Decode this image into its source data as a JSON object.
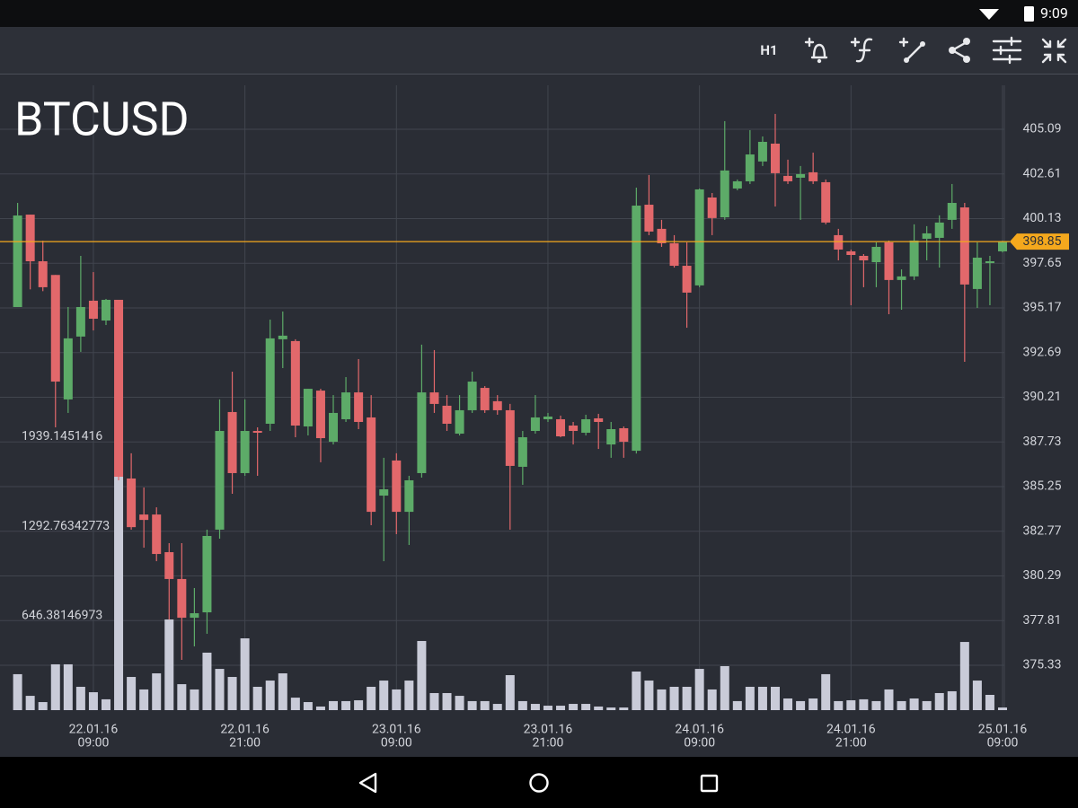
{
  "status_time": "9:09",
  "toolbar": {
    "timeframe": "H1"
  },
  "chart_data": {
    "type": "candlestick",
    "title": "BTCUSD",
    "categories": [
      null,
      null,
      null,
      null,
      null,
      null,
      {
        "date": "22.01.16",
        "time": "09:00"
      },
      null,
      null,
      null,
      null,
      null,
      null,
      null,
      null,
      null,
      null,
      null,
      {
        "date": "22.01.16",
        "time": "21:00"
      },
      null,
      null,
      null,
      null,
      null,
      null,
      null,
      null,
      null,
      null,
      null,
      {
        "date": "23.01.16",
        "time": "09:00"
      },
      null,
      null,
      null,
      null,
      null,
      null,
      null,
      null,
      null,
      null,
      null,
      {
        "date": "23.01.16",
        "time": "21:00"
      },
      null,
      null,
      null,
      null,
      null,
      null,
      null,
      null,
      null,
      null,
      null,
      {
        "date": "24.01.16",
        "time": "09:00"
      },
      null,
      null,
      null,
      null,
      null,
      null,
      null,
      null,
      null,
      null,
      null,
      {
        "date": "24.01.16",
        "time": "21:00"
      },
      null,
      null,
      null,
      null,
      null,
      null,
      null,
      null,
      null,
      null,
      null,
      {
        "date": "25.01.16",
        "time": "09:00"
      }
    ],
    "open": [
      395.22,
      400.35,
      397.76,
      397.0,
      390.09,
      393.58,
      395.57,
      394.47,
      395.62,
      385.7,
      383.7,
      383.7,
      381.61,
      380.12,
      377.97,
      378.27,
      382.86,
      389.39,
      386.0,
      388.34,
      388.74,
      393.43,
      393.33,
      388.59,
      390.58,
      387.74,
      388.99,
      390.48,
      389.09,
      384.75,
      386.7,
      383.85,
      386.0,
      390.48,
      389.74,
      388.19,
      389.49,
      390.73,
      389.99,
      389.49,
      386.35,
      388.34,
      388.99,
      388.99,
      388.64,
      388.24,
      389.04,
      387.59,
      388.49,
      387.24,
      400.9,
      399.56,
      398.76,
      397.51,
      396.42,
      401.3,
      400.2,
      401.8,
      402.2,
      403.3,
      404.29,
      402.5,
      402.4,
      402.7,
      402.15,
      399.21,
      398.31,
      398.06,
      397.71,
      398.81,
      396.72,
      396.92,
      399.01,
      399.06,
      400.06,
      400.75,
      396.22,
      397.66,
      398.31
    ],
    "high": [
      401.0,
      400.35,
      398.9,
      397.0,
      395.22,
      398.06,
      397.16,
      395.67,
      395.62,
      387.1,
      385.2,
      384.1,
      382.11,
      382.11,
      379.62,
      382.86,
      390.09,
      391.63,
      390.09,
      388.54,
      394.52,
      394.97,
      393.43,
      390.68,
      390.68,
      390.33,
      391.33,
      392.33,
      390.33,
      386.85,
      387.1,
      385.85,
      393.13,
      392.83,
      390.33,
      390.33,
      391.63,
      390.83,
      390.33,
      389.84,
      388.34,
      390.33,
      389.34,
      389.19,
      388.84,
      389.24,
      389.29,
      388.84,
      388.59,
      401.85,
      402.55,
      400.06,
      399.21,
      398.81,
      401.8,
      401.55,
      405.54,
      402.3,
      405.04,
      404.69,
      405.94,
      403.4,
      403.05,
      403.79,
      402.3,
      399.56,
      398.41,
      398.16,
      398.81,
      398.91,
      397.31,
      399.81,
      399.71,
      400.31,
      402.05,
      401.0,
      398.81,
      398.06,
      398.9
    ],
    "low": [
      395.22,
      396.2,
      396.1,
      388.54,
      389.34,
      392.73,
      393.92,
      394.22,
      385.6,
      382.86,
      381.86,
      381.11,
      377.87,
      375.63,
      376.38,
      377.08,
      382.36,
      384.85,
      385.85,
      385.85,
      388.34,
      391.83,
      387.99,
      388.09,
      386.6,
      387.59,
      388.84,
      388.44,
      383.11,
      381.11,
      382.61,
      382.01,
      385.75,
      389.34,
      388.34,
      388.09,
      389.34,
      389.34,
      389.24,
      382.86,
      385.35,
      388.19,
      388.84,
      387.99,
      387.59,
      388.09,
      387.34,
      386.85,
      386.85,
      387.09,
      399.21,
      398.56,
      397.41,
      394.07,
      396.32,
      399.21,
      400.06,
      401.7,
      402.05,
      403.05,
      400.8,
      402.05,
      400.06,
      402.05,
      399.81,
      397.81,
      395.32,
      396.32,
      396.32,
      394.82,
      395.07,
      396.72,
      397.81,
      397.41,
      399.56,
      392.18,
      395.17,
      395.32,
      398.25
    ],
    "close": [
      400.3,
      397.76,
      396.32,
      391.08,
      393.48,
      395.22,
      394.57,
      395.62,
      385.8,
      383.0,
      383.4,
      381.51,
      380.12,
      377.97,
      378.22,
      382.51,
      388.34,
      386.0,
      388.34,
      388.24,
      393.48,
      393.63,
      388.64,
      390.68,
      387.94,
      389.34,
      390.48,
      388.84,
      383.85,
      385.1,
      383.85,
      385.6,
      390.48,
      389.84,
      388.74,
      389.49,
      391.08,
      389.49,
      389.49,
      386.4,
      387.99,
      389.09,
      389.14,
      388.04,
      388.34,
      388.99,
      388.84,
      388.44,
      387.74,
      400.85,
      399.41,
      398.76,
      397.51,
      396.02,
      401.75,
      400.16,
      402.8,
      402.2,
      403.69,
      404.39,
      402.65,
      402.2,
      402.6,
      402.2,
      399.91,
      398.41,
      398.11,
      397.81,
      398.56,
      396.72,
      396.92,
      398.91,
      399.31,
      399.91,
      401.0,
      396.47,
      397.96,
      397.76,
      398.85
    ],
    "volume": [
      259,
      103,
      58,
      330,
      330,
      168,
      129,
      78,
      1681,
      239,
      149,
      265,
      653,
      187,
      149,
      414,
      297,
      239,
      517,
      168,
      213,
      265,
      90,
      58,
      26,
      65,
      65,
      71,
      168,
      213,
      149,
      213,
      498,
      123,
      123,
      103,
      65,
      65,
      45,
      252,
      65,
      45,
      32,
      32,
      45,
      45,
      26,
      19,
      19,
      278,
      213,
      149,
      168,
      168,
      297,
      149,
      317,
      65,
      168,
      168,
      168,
      84,
      65,
      84,
      259,
      65,
      71,
      78,
      65,
      149,
      65,
      84,
      65,
      123,
      136,
      491,
      213,
      110,
      19
    ],
    "ylim": [
      372.84,
      407.53
    ],
    "yticks": [
      405.09,
      402.61,
      400.13,
      397.65,
      395.17,
      392.69,
      390.21,
      387.73,
      385.25,
      382.77,
      380.29,
      377.81,
      375.33
    ],
    "y2lim": [
      0,
      4500
    ],
    "y2ticks": [
      1939.1451416,
      1292.76342773,
      646.38146973
    ],
    "last_price": 398.85,
    "up_color": "#5dab68",
    "down_color": "#e2686b",
    "volume_color": "#c9cbd8",
    "last_price_color": "#f4a81d",
    "grid": true
  }
}
